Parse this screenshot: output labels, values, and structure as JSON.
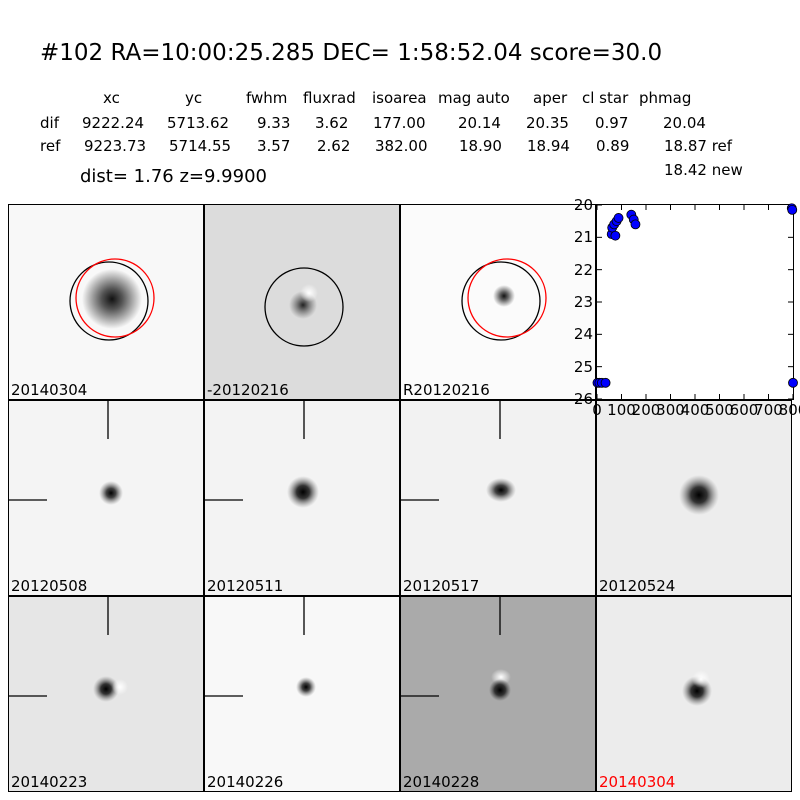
{
  "header": {
    "title": "#102   RA=10:00:25.285 DEC= 1:58:52.04      score=30.0",
    "columns": [
      "xc",
      "yc",
      "fwhm",
      "fluxrad",
      "isoarea",
      "mag auto",
      "aper",
      "cl star",
      "phmag"
    ],
    "rows": [
      {
        "label": "dif",
        "values": [
          "9222.24",
          "5713.62",
          "9.33",
          "3.62",
          "177.00",
          "20.14",
          "20.35",
          "0.97",
          "20.04"
        ]
      },
      {
        "label": "ref",
        "values": [
          "9223.73",
          "5714.55",
          "3.57",
          "2.62",
          "382.00",
          "18.90",
          "18.94",
          "0.89",
          "18.87 ref"
        ]
      }
    ],
    "phmag_new": "18.42 new",
    "dist_line": "dist=  1.76      z=9.9900"
  },
  "panels": [
    {
      "label": "20140304",
      "bg": "#f8f8f8",
      "circles": "both",
      "red": false
    },
    {
      "label": "-20120216",
      "bg": "#dcdcdc",
      "circles": "black",
      "red": false
    },
    {
      "label": "R20120216",
      "bg": "#fbfbfb",
      "circles": "both",
      "red": false
    },
    {
      "label": "20120508",
      "bg": "#f4f4f4",
      "circles": "none",
      "red": false
    },
    {
      "label": "20120511",
      "bg": "#f3f3f3",
      "circles": "none",
      "red": false
    },
    {
      "label": "20120517",
      "bg": "#f2f2f2",
      "circles": "none",
      "red": false
    },
    {
      "label": "20120524",
      "bg": "#ededed",
      "circles": "none",
      "red": false
    },
    {
      "label": "20140223",
      "bg": "#e6e6e6",
      "circles": "none",
      "red": false
    },
    {
      "label": "20140226",
      "bg": "#f8f8f8",
      "circles": "none",
      "red": false
    },
    {
      "label": "20140228",
      "bg": "#aaaaaa",
      "circles": "none",
      "red": false
    },
    {
      "label": "20140304",
      "bg": "#ececec",
      "circles": "none",
      "red": true
    }
  ],
  "chart_data": {
    "type": "scatter",
    "xlim": [
      0,
      800
    ],
    "ylim": [
      26,
      20
    ],
    "x_ticks": [
      "0",
      "100",
      "200",
      "300",
      "400",
      "500",
      "600",
      "700",
      "800"
    ],
    "y_ticks": [
      "20",
      "21",
      "22",
      "23",
      "24",
      "25",
      "26"
    ],
    "marker_color": "#0000ff",
    "points": [
      [
        2,
        25.5
      ],
      [
        10,
        25.5
      ],
      [
        20,
        25.5
      ],
      [
        35,
        25.5
      ],
      [
        60,
        20.9
      ],
      [
        62,
        20.7
      ],
      [
        70,
        20.6
      ],
      [
        75,
        20.95
      ],
      [
        80,
        20.5
      ],
      [
        88,
        20.4
      ],
      [
        140,
        20.3
      ],
      [
        150,
        20.45
      ],
      [
        157,
        20.6
      ],
      [
        795,
        20.1
      ],
      [
        797,
        20.15
      ],
      [
        800,
        25.5
      ]
    ]
  }
}
